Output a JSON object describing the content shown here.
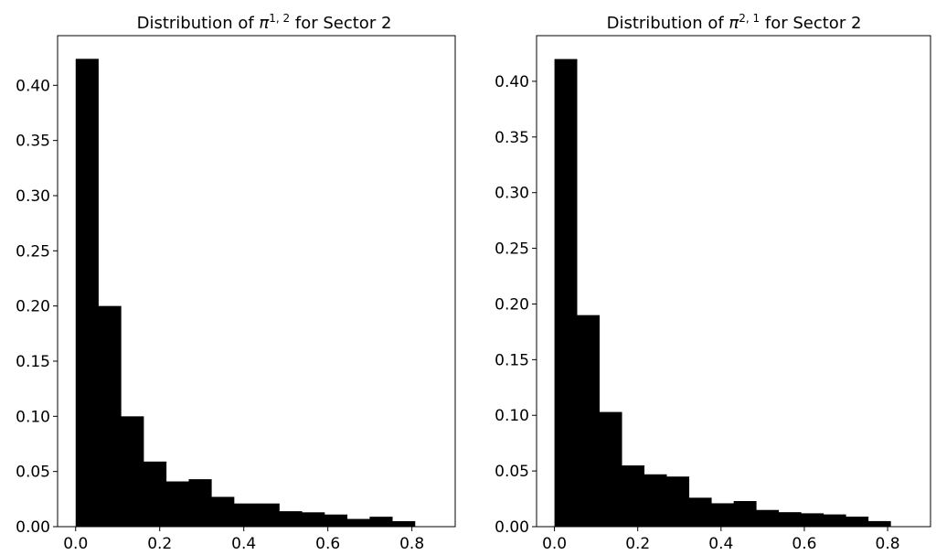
{
  "chart_data": [
    {
      "type": "bar",
      "title": {
        "prefix": "Distribution of ",
        "symbol": "π",
        "superscript": "1, 2",
        "suffix": " for Sector 2"
      },
      "bin_width": 0.0538,
      "bin_start": 0.0,
      "values": [
        0.424,
        0.2,
        0.1,
        0.059,
        0.041,
        0.043,
        0.027,
        0.021,
        0.021,
        0.014,
        0.013,
        0.011,
        0.007,
        0.009,
        0.005
      ],
      "bar_color": "#000000",
      "xlim": [
        -0.043,
        0.903
      ],
      "ylim": [
        0.0,
        0.445
      ],
      "xticks": [
        0.0,
        0.2,
        0.4,
        0.6,
        0.8
      ],
      "xtick_labels": [
        "0.0",
        "0.2",
        "0.4",
        "0.6",
        "0.8"
      ],
      "yticks": [
        0.0,
        0.05,
        0.1,
        0.15,
        0.2,
        0.25,
        0.3,
        0.35,
        0.4
      ],
      "ytick_labels": [
        "0.00",
        "0.05",
        "0.10",
        "0.15",
        "0.20",
        "0.25",
        "0.30",
        "0.35",
        "0.40"
      ],
      "grid": false
    },
    {
      "type": "bar",
      "title": {
        "prefix": "Distribution of ",
        "symbol": "π",
        "superscript": "2, 1",
        "suffix": " for Sector 2"
      },
      "bin_width": 0.0538,
      "bin_start": 0.0,
      "values": [
        0.42,
        0.19,
        0.103,
        0.055,
        0.047,
        0.045,
        0.026,
        0.021,
        0.023,
        0.015,
        0.013,
        0.012,
        0.011,
        0.009,
        0.005
      ],
      "bar_color": "#000000",
      "xlim": [
        -0.043,
        0.903
      ],
      "ylim": [
        0.0,
        0.441
      ],
      "xticks": [
        0.0,
        0.2,
        0.4,
        0.6,
        0.8
      ],
      "xtick_labels": [
        "0.0",
        "0.2",
        "0.4",
        "0.6",
        "0.8"
      ],
      "yticks": [
        0.0,
        0.05,
        0.1,
        0.15,
        0.2,
        0.25,
        0.3,
        0.35,
        0.4
      ],
      "ytick_labels": [
        "0.00",
        "0.05",
        "0.10",
        "0.15",
        "0.20",
        "0.25",
        "0.30",
        "0.35",
        "0.40"
      ],
      "grid": false
    }
  ]
}
